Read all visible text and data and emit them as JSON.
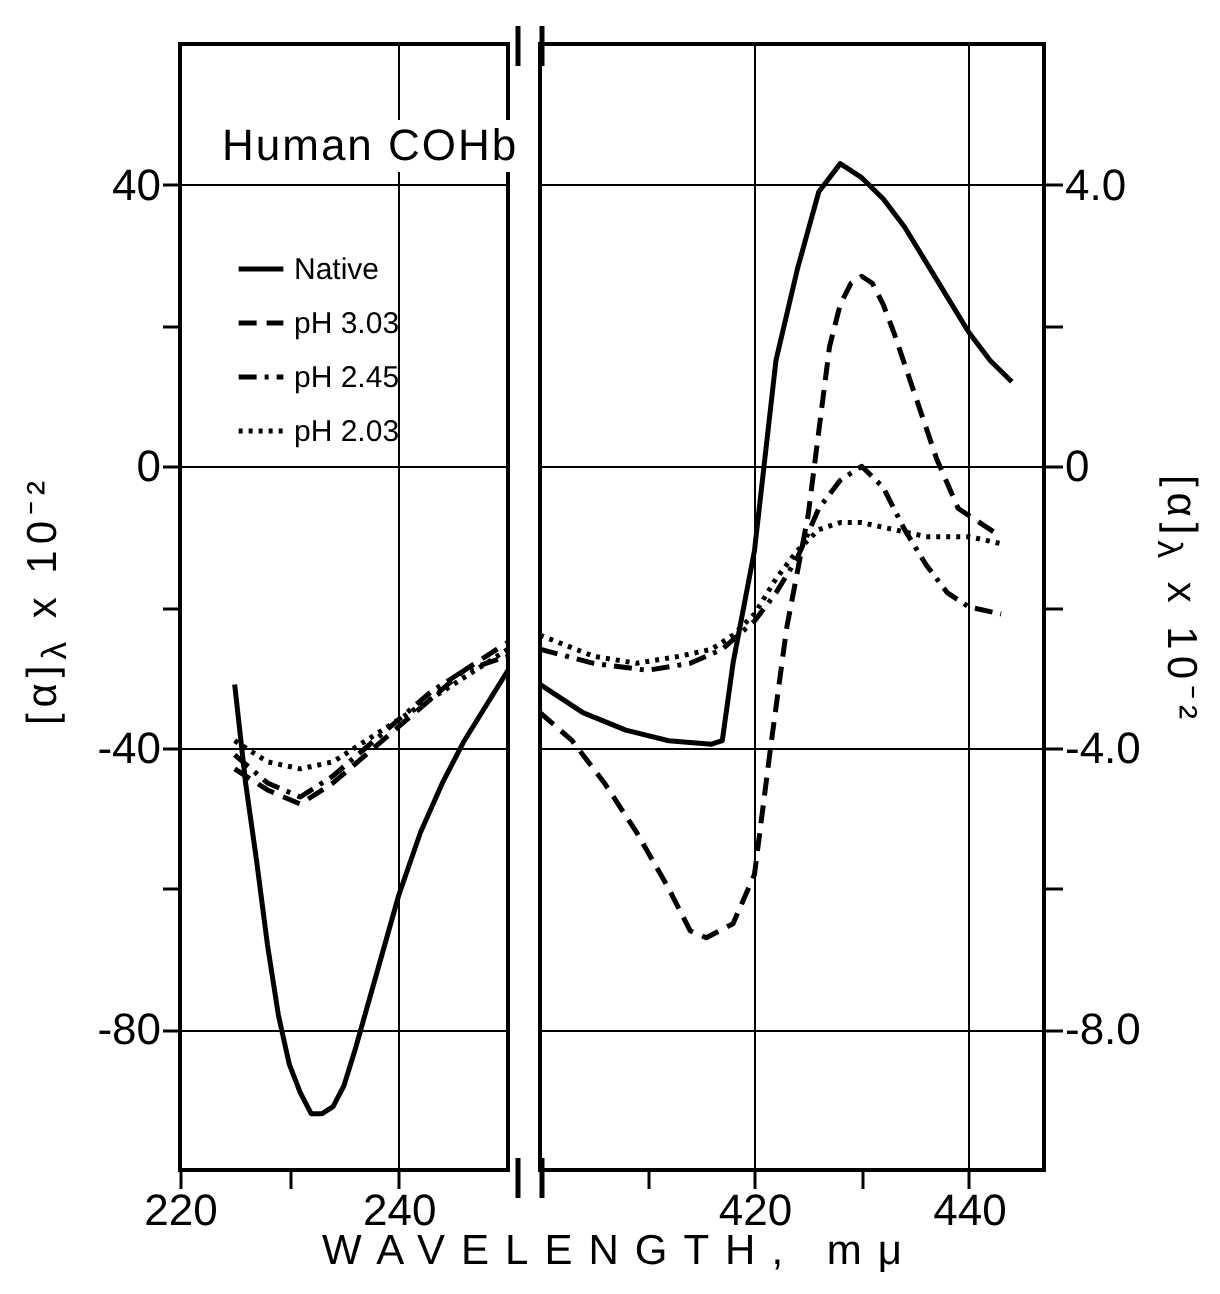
{
  "chart_data": [
    {
      "type": "line",
      "title": "Human COHb",
      "xlabel": "WAVELENGTH, mμ",
      "ylabel": "[α]$_{λ}$ x 10⁻²",
      "xlim": [
        220,
        250
      ],
      "xticks": [
        220,
        {
          "value": 230,
          "label": null
        },
        240
      ],
      "ylim": [
        -100,
        60
      ],
      "yticks": [
        {
          "value": 40,
          "label": "40"
        },
        {
          "value": 20,
          "label": null
        },
        0,
        {
          "value": -20,
          "label": null
        },
        -40,
        {
          "value": -60,
          "label": null
        },
        -80
      ],
      "grid": true,
      "legend": "top left",
      "series": [
        {
          "name": "Native",
          "color": "#000000",
          "line_style": "solid",
          "x": [
            225,
            226,
            227,
            228,
            229,
            230,
            231,
            232,
            233,
            234,
            235,
            236,
            238,
            240,
            242,
            244,
            246,
            248,
            250
          ],
          "values": [
            -31,
            -45,
            -56,
            -68,
            -78,
            -85,
            -89,
            -92,
            -92,
            -91,
            -88,
            -83,
            -72,
            -61,
            -52,
            -45,
            -39,
            -34,
            -29
          ]
        },
        {
          "name": "pH 3.03",
          "color": "#000000",
          "line_style": "dashed",
          "x": [
            225,
            228,
            231,
            234,
            237,
            240,
            243,
            246,
            249,
            250
          ],
          "values": [
            -43,
            -46,
            -48,
            -45,
            -41,
            -37,
            -33,
            -29,
            -26,
            -25
          ]
        },
        {
          "name": "pH 2.45",
          "color": "#000000",
          "line_style": "dashdot",
          "x": [
            225,
            228,
            231,
            234,
            237,
            240,
            243,
            246,
            250
          ],
          "values": [
            -41,
            -45,
            -47,
            -44,
            -40,
            -36,
            -32,
            -29,
            -27
          ]
        },
        {
          "name": "pH 2.03",
          "color": "#000000",
          "line_style": "dotted",
          "x": [
            225,
            228,
            231,
            234,
            237,
            240,
            243,
            246,
            250
          ],
          "values": [
            -39,
            -42,
            -43,
            -42,
            -39,
            -36,
            -33,
            -30,
            -26
          ]
        }
      ]
    },
    {
      "type": "line",
      "y2label": "[α]$_{λ}$ x 10⁻²",
      "xlim": [
        400,
        447
      ],
      "xticks": [
        {
          "value": 410,
          "label": null
        },
        420,
        {
          "value": 430,
          "label": null
        },
        440
      ],
      "y2lim": [
        -10,
        6
      ],
      "y2ticks": [
        {
          "value": 4,
          "label": "4.0"
        },
        {
          "value": 2,
          "label": null
        },
        0,
        {
          "value": -2,
          "label": null
        },
        {
          "value": -4,
          "label": "-4.0"
        },
        {
          "value": -6,
          "label": null
        },
        {
          "value": -8,
          "label": "-8.0"
        }
      ],
      "grid": true,
      "series": [
        {
          "color": "#000000",
          "line_style": "solid",
          "axis": "y2",
          "x": [
            400,
            404,
            408,
            412,
            416,
            417,
            418,
            420,
            422,
            424,
            426,
            428,
            430,
            432,
            434,
            436,
            438,
            440,
            442,
            444
          ],
          "values": [
            -3.1,
            -3.5,
            -3.75,
            -3.9,
            -3.95,
            -3.9,
            -2.8,
            -1.2,
            1.5,
            2.8,
            3.9,
            4.3,
            4.1,
            3.8,
            3.4,
            2.9,
            2.4,
            1.9,
            1.5,
            1.2
          ]
        },
        {
          "color": "#000000",
          "line_style": "dashed",
          "axis": "y2",
          "x": [
            400,
            403,
            406,
            409,
            412,
            414,
            415.5,
            418,
            420,
            421.5,
            423,
            425,
            427,
            428,
            429,
            430,
            431,
            432,
            433,
            435,
            437,
            439,
            441,
            443
          ],
          "values": [
            -3.5,
            -3.9,
            -4.5,
            -5.2,
            -6.0,
            -6.6,
            -6.7,
            -6.5,
            -5.8,
            -4.0,
            -2.3,
            -0.7,
            1.7,
            2.3,
            2.6,
            2.7,
            2.6,
            2.3,
            1.9,
            1.0,
            0.1,
            -0.6,
            -0.8,
            -1.0
          ]
        },
        {
          "color": "#000000",
          "line_style": "dashdot",
          "axis": "y2",
          "x": [
            400,
            405,
            410,
            414,
            417,
            420,
            422,
            424,
            426,
            428,
            430,
            432,
            434,
            436,
            438,
            440,
            443
          ],
          "values": [
            -2.6,
            -2.8,
            -2.9,
            -2.8,
            -2.6,
            -2.2,
            -1.8,
            -1.3,
            -0.6,
            -0.2,
            0.0,
            -0.3,
            -0.9,
            -1.4,
            -1.8,
            -2.0,
            -2.1
          ]
        },
        {
          "color": "#000000",
          "line_style": "dotted",
          "axis": "y2",
          "x": [
            400,
            405,
            409,
            413,
            416,
            418,
            420,
            422,
            424,
            426,
            428,
            430,
            433,
            436,
            440,
            443
          ],
          "values": [
            -2.4,
            -2.7,
            -2.8,
            -2.7,
            -2.6,
            -2.4,
            -2.1,
            -1.6,
            -1.2,
            -0.9,
            -0.8,
            -0.8,
            -0.9,
            -1.0,
            -1.0,
            -1.1
          ]
        }
      ]
    }
  ]
}
